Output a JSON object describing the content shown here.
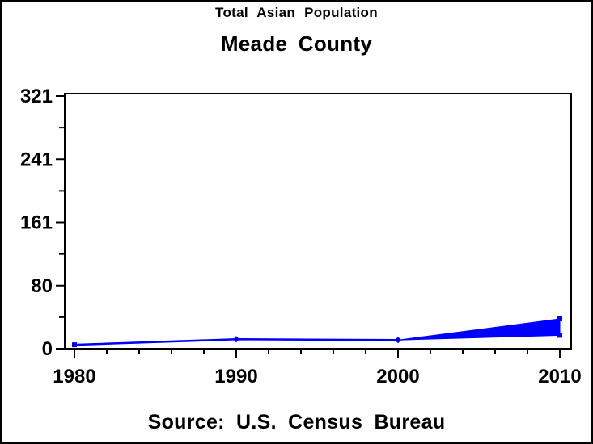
{
  "titles": {
    "line1": "Total Asian Population",
    "line2": "Meade County"
  },
  "source": "Source: U.S. Census Bureau",
  "colors": {
    "series": "#0000ff",
    "axis": "#000000",
    "background": "#ffffff"
  },
  "chart_data": {
    "type": "line",
    "title": "Total Asian Population",
    "subtitle": "Meade County",
    "footnote": "Source: U.S. Census Bureau",
    "xlabel": "",
    "ylabel": "",
    "xlim": [
      1980,
      2010
    ],
    "ylim": [
      0,
      321
    ],
    "grid": false,
    "legend": "none",
    "x_major_ticks": [
      1980,
      1990,
      2000,
      2010
    ],
    "x_tick_labels": [
      "1980",
      "1990",
      "2000",
      "2010"
    ],
    "x_minor_step": 2,
    "y_tick_labels": [
      "0",
      "80",
      "161",
      "241",
      "321"
    ],
    "series": [
      {
        "name": "census-count",
        "type": "line",
        "color": "#0000ff",
        "x": [
          1980,
          1990,
          2000
        ],
        "values": [
          5,
          12,
          11
        ],
        "markers": [
          "square",
          "diamond",
          "diamond"
        ]
      },
      {
        "name": "projection-range",
        "type": "band",
        "color": "#0000ff",
        "x": [
          2000,
          2010
        ],
        "low": [
          11,
          17
        ],
        "high": [
          11,
          38
        ],
        "end_marker": "square"
      }
    ]
  }
}
